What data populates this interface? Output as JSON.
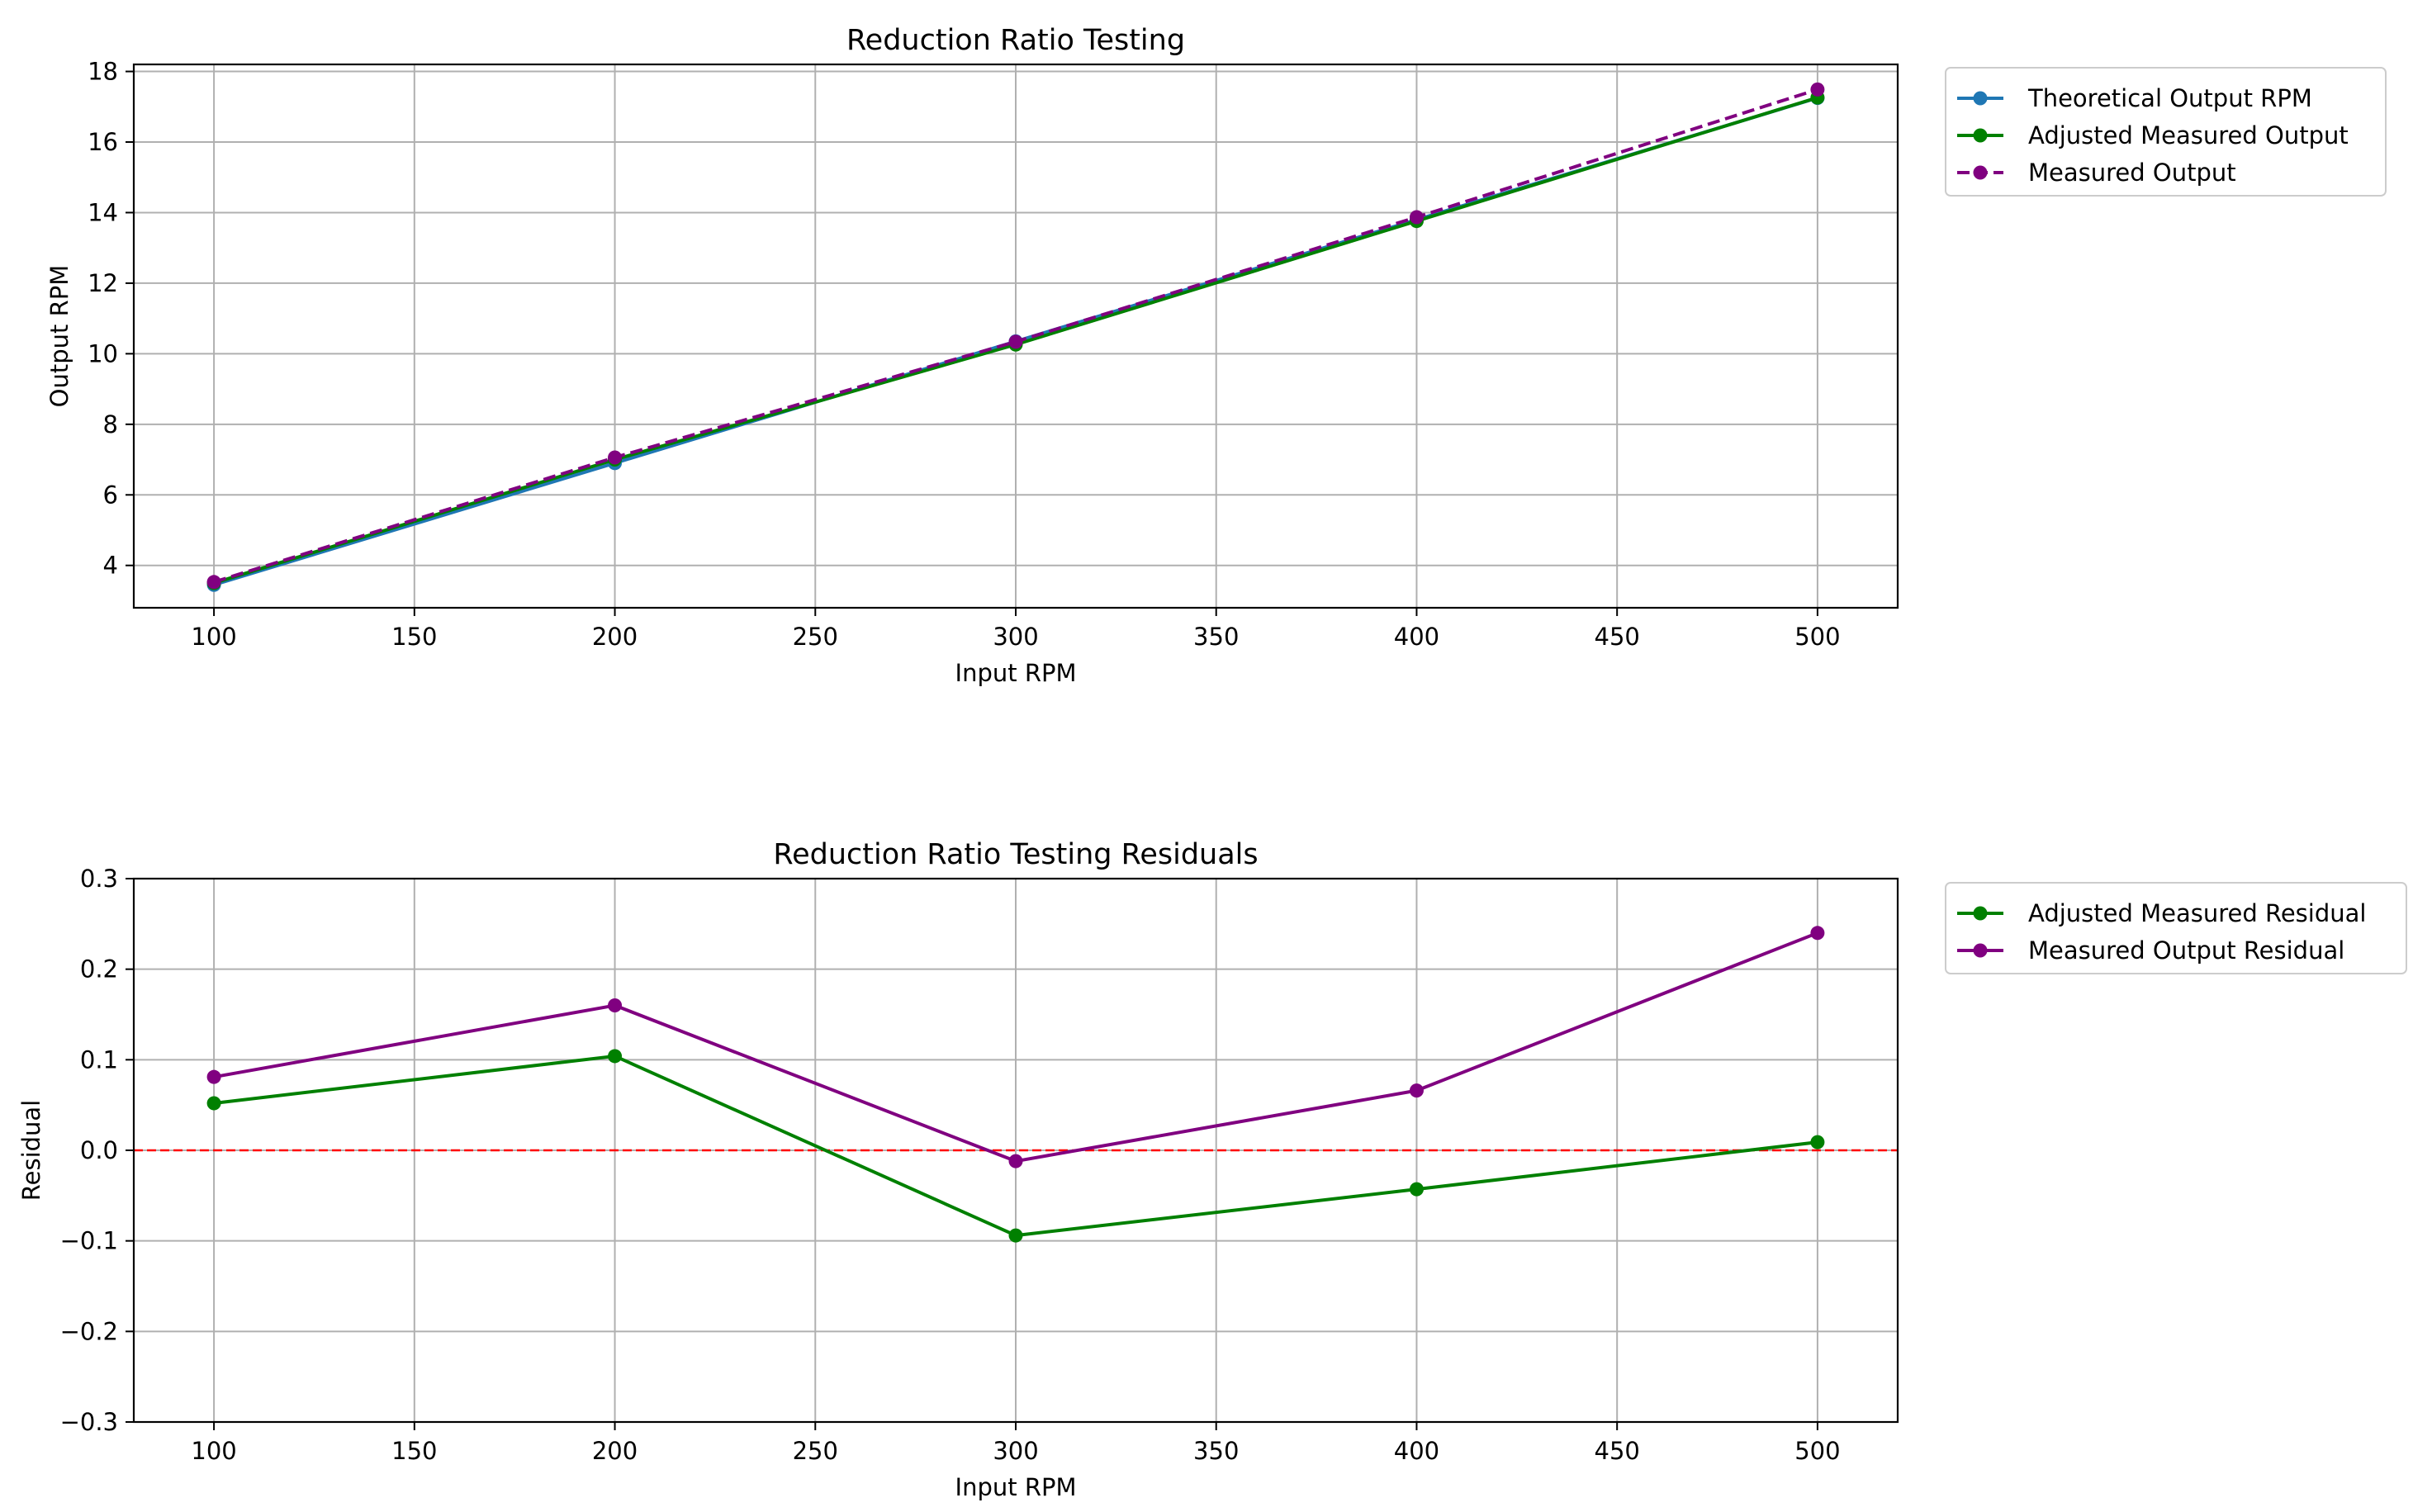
{
  "chart_data": [
    {
      "type": "line",
      "title": "Reduction Ratio Testing",
      "xlabel": "Input RPM",
      "ylabel": "Output RPM",
      "x": [
        100,
        200,
        300,
        400,
        500
      ],
      "xlim": [
        80,
        520
      ],
      "ylim": [
        2.8,
        18.2
      ],
      "xticks": [
        100,
        150,
        200,
        250,
        300,
        350,
        400,
        450,
        500
      ],
      "yticks": [
        4,
        6,
        8,
        10,
        12,
        14,
        16,
        18
      ],
      "grid": true,
      "legend_position": "outside-right-top",
      "series": [
        {
          "name": "Theoretical Output RPM",
          "values": [
            3.45,
            6.9,
            10.35,
            13.8,
            17.25
          ],
          "color": "#1f77b4",
          "dash": "solid"
        },
        {
          "name": "Adjusted Measured Output",
          "values": [
            3.5,
            7.0,
            10.26,
            13.76,
            17.26
          ],
          "color": "#008000",
          "dash": "solid"
        },
        {
          "name": "Measured Output",
          "values": [
            3.53,
            7.06,
            10.34,
            13.87,
            17.49
          ],
          "color": "#800080",
          "dash": "dashed"
        }
      ]
    },
    {
      "type": "line",
      "title": "Reduction Ratio Testing Residuals",
      "xlabel": "Input RPM",
      "ylabel": "Residual",
      "x": [
        100,
        200,
        300,
        400,
        500
      ],
      "xlim": [
        80,
        520
      ],
      "ylim": [
        -0.3,
        0.3
      ],
      "xticks": [
        100,
        150,
        200,
        250,
        300,
        350,
        400,
        450,
        500
      ],
      "yticks": [
        -0.3,
        -0.2,
        -0.1,
        0.0,
        0.1,
        0.2,
        0.3
      ],
      "ytick_labels": [
        "−0.3",
        "−0.2",
        "−0.1",
        "0.0",
        "0.1",
        "0.2",
        "0.3"
      ],
      "grid": true,
      "reference_line": {
        "y": 0.0,
        "color": "#ff0000",
        "dash": "dashed"
      },
      "legend_position": "outside-right-top",
      "series": [
        {
          "name": "Adjusted Measured Residual",
          "values": [
            0.052,
            0.104,
            -0.094,
            -0.043,
            0.009
          ],
          "color": "#008000",
          "dash": "solid"
        },
        {
          "name": "Measured Output Residual",
          "values": [
            0.081,
            0.16,
            -0.012,
            0.066,
            0.24
          ],
          "color": "#800080",
          "dash": "solid"
        }
      ]
    }
  ]
}
